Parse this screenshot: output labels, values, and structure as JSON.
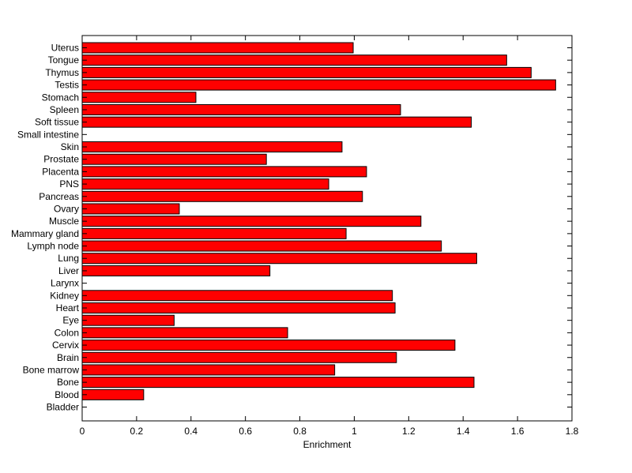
{
  "chart_data": {
    "type": "bar",
    "orientation": "horizontal",
    "title": "",
    "xlabel": "Enrichment",
    "ylabel": "",
    "xlim": [
      0,
      1.8
    ],
    "xticks": [
      0,
      0.2,
      0.4,
      0.6,
      0.8,
      1,
      1.2,
      1.4,
      1.6,
      1.8
    ],
    "xtick_labels": [
      "0",
      "0.2",
      "0.4",
      "0.6",
      "0.8",
      "1",
      "1.2",
      "1.4",
      "1.6",
      "1.8"
    ],
    "grid": false,
    "legend": "none",
    "bar_color": "#ff0000",
    "bar_edge_color": "#000000",
    "categories": [
      "Uterus",
      "Tongue",
      "Thymus",
      "Testis",
      "Stomach",
      "Spleen",
      "Soft tissue",
      "Small intestine",
      "Skin",
      "Prostate",
      "Placenta",
      "PNS",
      "Pancreas",
      "Ovary",
      "Muscle",
      "Mammary gland",
      "Lymph node",
      "Lung",
      "Liver",
      "Larynx",
      "Kidney",
      "Heart",
      "Eye",
      "Colon",
      "Cervix",
      "Brain",
      "Bone marrow",
      "Bone",
      "Blood",
      "Bladder"
    ],
    "values": [
      0.996,
      1.56,
      1.65,
      1.74,
      0.418,
      1.17,
      1.43,
      0,
      0.955,
      0.677,
      1.045,
      0.906,
      1.03,
      0.357,
      1.245,
      0.97,
      1.32,
      1.45,
      0.69,
      0,
      1.14,
      1.15,
      0.338,
      0.755,
      1.37,
      1.155,
      0.928,
      1.44,
      0.226,
      0
    ]
  }
}
